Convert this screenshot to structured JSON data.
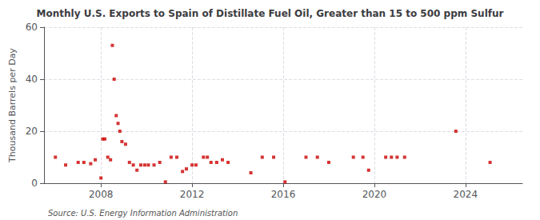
{
  "chart_data": {
    "type": "scatter",
    "title": "Monthly U.S. Exports to Spain of Distillate Fuel Oil, Greater than 15 to 500 ppm Sulfur",
    "ylabel": "Thousand Barrels per Day",
    "annotations": [
      "Source: U.S. Energy Information Administration"
    ],
    "x": [
      2006.0,
      2006.45,
      2007.0,
      2007.25,
      2007.55,
      2007.75,
      2008.0,
      2008.08,
      2008.17,
      2008.3,
      2008.42,
      2008.5,
      2008.58,
      2008.67,
      2008.75,
      2008.83,
      2008.92,
      2009.08,
      2009.25,
      2009.42,
      2009.58,
      2009.75,
      2009.92,
      2010.08,
      2010.33,
      2010.58,
      2010.83,
      2011.08,
      2011.33,
      2011.58,
      2011.75,
      2012.0,
      2012.17,
      2012.5,
      2012.67,
      2012.83,
      2013.08,
      2013.33,
      2013.58,
      2014.58,
      2015.08,
      2015.58,
      2016.08,
      2017.0,
      2017.5,
      2018.0,
      2019.08,
      2019.5,
      2019.75,
      2020.5,
      2020.75,
      2021.0,
      2021.33,
      2023.58,
      2025.08
    ],
    "values": [
      10,
      7,
      8,
      8,
      7.5,
      9,
      2,
      17,
      17,
      10,
      9,
      53,
      40,
      26,
      23,
      20,
      16,
      15,
      8,
      7,
      5,
      7,
      7,
      7,
      7,
      8,
      0.5,
      10,
      10,
      4.5,
      5.5,
      7,
      7,
      10,
      10,
      8,
      8,
      9,
      8,
      4,
      10,
      10,
      0.5,
      10,
      10,
      8,
      10,
      10,
      5,
      10,
      10,
      10,
      10,
      20,
      8
    ],
    "color": "#cc0000",
    "marker": "square",
    "xlim": [
      2005.5,
      2026.5
    ],
    "xticks": [
      2008,
      2012,
      2016,
      2020,
      2024
    ],
    "ylim": [
      0,
      60
    ],
    "yticks": [
      0,
      20,
      40,
      60
    ],
    "grid": true
  }
}
